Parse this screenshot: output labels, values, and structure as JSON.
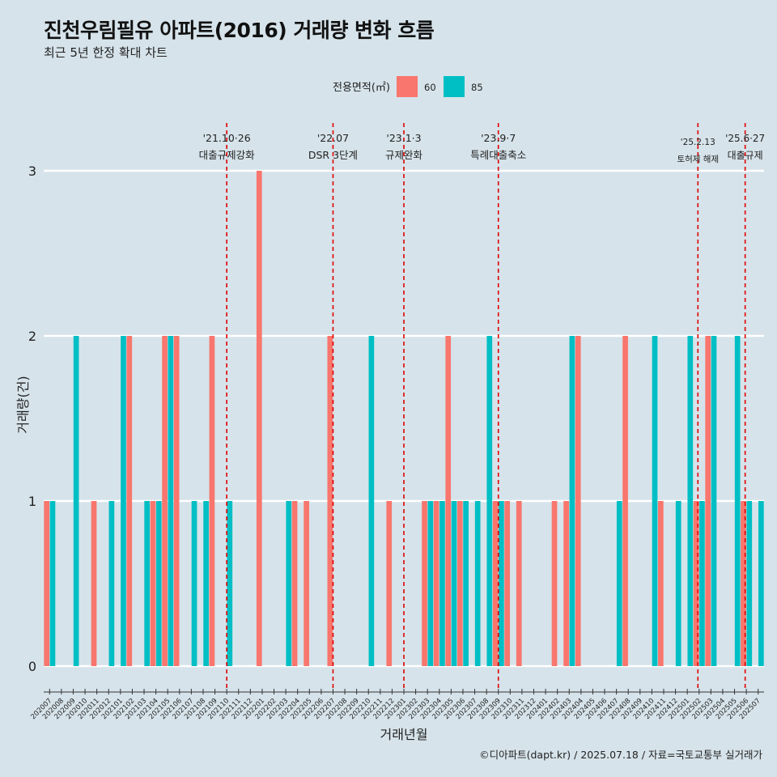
{
  "chart_data": {
    "type": "bar",
    "title": "진천우림필유 아파트(2016) 거래량 변화 흐름",
    "subtitle": "최근 5년 한정 확대 차트",
    "xlabel": "거래년월",
    "ylabel": "거래량(건)",
    "ylim": [
      0,
      3
    ],
    "yticks": [
      "0",
      "1",
      "2",
      "3"
    ],
    "legend": {
      "title": "전용면적(㎡)",
      "placement": "top",
      "entries": [
        {
          "name": "60",
          "color": "#F8766D"
        },
        {
          "name": "85",
          "color": "#00BFC4"
        }
      ]
    },
    "caption": "©디아파트(dapt.kr) / 2025.07.18 / 자료=국토교통부 실거래가",
    "categories": [
      "202007",
      "202008",
      "202009",
      "202010",
      "202011",
      "202012",
      "202101",
      "202102",
      "202103",
      "202104",
      "202105",
      "202106",
      "202107",
      "202108",
      "202109",
      "202110",
      "202111",
      "202112",
      "202201",
      "202202",
      "202203",
      "202204",
      "202205",
      "202206",
      "202207",
      "202208",
      "202209",
      "202210",
      "202211",
      "202212",
      "202301",
      "202302",
      "202303",
      "202304",
      "202305",
      "202306",
      "202307",
      "202308",
      "202309",
      "202310",
      "202311",
      "202312",
      "202401",
      "202402",
      "202403",
      "202404",
      "202405",
      "202406",
      "202407",
      "202408",
      "202409",
      "202410",
      "202411",
      "202412",
      "202501",
      "202502",
      "202503",
      "202504",
      "202505",
      "202506",
      "202507"
    ],
    "series": [
      {
        "name": "60",
        "color": "#F8766D",
        "values": [
          1,
          0,
          0,
          0,
          1,
          0,
          0,
          2,
          0,
          1,
          2,
          2,
          0,
          0,
          2,
          0,
          0,
          0,
          3,
          0,
          0,
          1,
          1,
          0,
          2,
          0,
          0,
          0,
          0,
          1,
          0,
          0,
          1,
          1,
          2,
          1,
          0,
          0,
          1,
          1,
          1,
          0,
          0,
          1,
          1,
          2,
          0,
          0,
          0,
          2,
          0,
          0,
          1,
          0,
          0,
          1,
          2,
          0,
          0,
          1,
          0
        ]
      },
      {
        "name": "85",
        "color": "#00BFC4",
        "values": [
          1,
          0,
          2,
          0,
          0,
          1,
          2,
          0,
          1,
          1,
          2,
          0,
          1,
          1,
          0,
          1,
          0,
          0,
          0,
          0,
          1,
          0,
          0,
          0,
          0,
          0,
          0,
          2,
          0,
          0,
          0,
          0,
          1,
          1,
          1,
          1,
          1,
          2,
          1,
          0,
          0,
          0,
          0,
          0,
          2,
          0,
          0,
          0,
          1,
          0,
          0,
          2,
          0,
          1,
          2,
          1,
          2,
          0,
          2,
          1,
          1
        ]
      }
    ],
    "annotations": [
      {
        "date": "'21.10·26",
        "label": "대출규제강화",
        "index": 15.5
      },
      {
        "date": "'22.07",
        "label": "DSR 3단계",
        "index": 24.5
      },
      {
        "date": "'23.1·3",
        "label": "규제완화",
        "index": 30.5
      },
      {
        "date": "'23.9·7",
        "label": "특례대출축소",
        "index": 38.5
      },
      {
        "date": "'25.2.13",
        "label": "토허제 해제",
        "index": 55.4
      },
      {
        "date": "'25.6·27",
        "label": "대출규제",
        "index": 59.4
      }
    ]
  }
}
